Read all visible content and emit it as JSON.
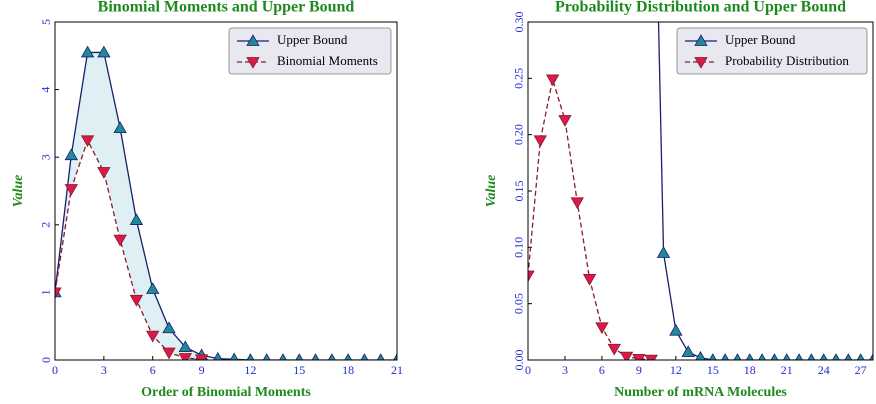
{
  "chart_data": [
    {
      "type": "line",
      "title": "Binomial Moments and Upper Bound",
      "xlabel": "Order of Binomial Moments",
      "ylabel": "Value",
      "x": [
        0,
        1,
        2,
        3,
        4,
        5,
        6,
        7,
        8,
        9,
        10,
        11,
        12,
        13,
        14,
        15,
        16,
        17,
        18,
        19,
        20,
        21
      ],
      "series": [
        {
          "name": "Upper Bound",
          "color": "#1a1f6e",
          "marker_color": "#1f8a9a",
          "marker": "triangle-up",
          "linestyle": "solid",
          "values": [
            1,
            3.03,
            4.55,
            4.55,
            3.43,
            2.07,
            1.05,
            0.47,
            0.19,
            0.07,
            0.02,
            0.01,
            0,
            0,
            0,
            0,
            0,
            0,
            0,
            0,
            0,
            0
          ]
        },
        {
          "name": "Binomial Moments",
          "color": "#8b1a2a",
          "marker_color": "#d81b4a",
          "marker": "triangle-down",
          "linestyle": "dashed",
          "values": [
            1,
            2.53,
            3.25,
            2.78,
            1.78,
            0.89,
            0.36,
            0.11,
            0.03,
            0.01,
            null,
            null,
            null,
            null,
            null,
            null,
            null,
            null,
            null,
            null,
            null,
            null
          ]
        }
      ],
      "fill_between": "#dff0f5",
      "xlim": [
        0,
        21
      ],
      "xticks": [
        0,
        3,
        6,
        9,
        12,
        15,
        18,
        21
      ],
      "ylim": [
        0,
        5
      ],
      "yticks": [
        0,
        1,
        2,
        3,
        4,
        5
      ],
      "legend": "upper right"
    },
    {
      "type": "line",
      "title": "Probability Distribution and Upper Bound",
      "xlabel": "Number of mRNA Molecules",
      "ylabel": "Value",
      "x": [
        0,
        1,
        2,
        3,
        4,
        5,
        6,
        7,
        8,
        9,
        10,
        11,
        12,
        13,
        14,
        15,
        16,
        17,
        18,
        19,
        20,
        21,
        22,
        23,
        24,
        25,
        26,
        27,
        28
      ],
      "series": [
        {
          "name": "Upper Bound",
          "color": "#1a1f6e",
          "marker_color": "#1f8a9a",
          "marker": "triangle-up",
          "linestyle": "solid",
          "values": [
            null,
            null,
            null,
            null,
            null,
            null,
            null,
            null,
            null,
            null,
            0.6,
            0.095,
            0.026,
            0.007,
            0.002,
            0,
            0,
            0,
            0,
            0,
            0,
            0,
            0,
            0,
            0,
            0,
            0,
            0,
            0
          ]
        },
        {
          "name": "Probability Distribution",
          "color": "#8b1a2a",
          "marker_color": "#d81b4a",
          "marker": "triangle-down",
          "linestyle": "dashed",
          "values": [
            0.075,
            0.195,
            0.249,
            0.213,
            0.14,
            0.072,
            0.029,
            0.01,
            0.003,
            0.001,
            0.0003,
            null,
            null,
            null,
            null,
            null,
            null,
            null,
            null,
            null,
            null,
            null,
            null,
            null,
            null,
            null,
            null,
            null,
            null
          ]
        }
      ],
      "xlim": [
        0,
        28
      ],
      "xticks": [
        0,
        3,
        6,
        9,
        12,
        15,
        18,
        21,
        24,
        27
      ],
      "ylim": [
        0,
        0.3
      ],
      "yticks": [
        {
          "value": 0,
          "label": "0.00"
        },
        {
          "value": 0.05,
          "label": "0.05"
        },
        {
          "value": 0.1,
          "label": "0.10"
        },
        {
          "value": 0.15,
          "label": "0.15"
        },
        {
          "value": 0.2,
          "label": "0.20"
        },
        {
          "value": 0.25,
          "label": "0.25"
        },
        {
          "value": 0.3,
          "label": "0.30"
        }
      ],
      "legend": "upper right"
    }
  ]
}
